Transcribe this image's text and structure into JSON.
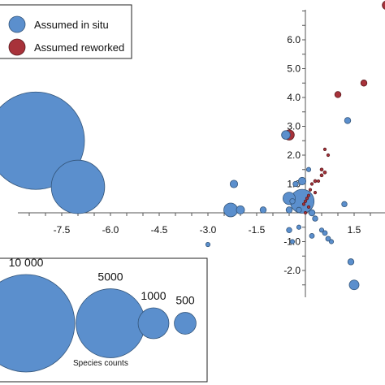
{
  "chart_data": {
    "type": "scatter",
    "title": "",
    "xlabel": "",
    "ylabel": "",
    "xlim": [
      -9.8,
      2.2
    ],
    "ylim": [
      -3.6,
      7.0
    ],
    "x_ticks": [
      -7.5,
      -6.0,
      -4.5,
      -3.0,
      -1.5,
      1.5
    ],
    "x_tick_labels": [
      "-7.5",
      "-6.0",
      "-4.5",
      "-3.0",
      "-1.5",
      "1.5"
    ],
    "y_ticks": [
      6.0,
      5.0,
      4.0,
      3.0,
      2.0,
      1.0,
      -1.0,
      -2.0
    ],
    "y_tick_labels": [
      "6.0",
      "5.0",
      "4.0",
      "3.0",
      "2.0",
      "1.0",
      "-1.0",
      "-2.0"
    ],
    "grid": false,
    "legend_position": "top-left",
    "series": [
      {
        "name": "Assumed in situ",
        "color": "#5b8fcd",
        "points": [
          {
            "x": -8.3,
            "y": 2.5,
            "size": 10000
          },
          {
            "x": -7.0,
            "y": 0.9,
            "size": 3000
          },
          {
            "x": -2.3,
            "y": 0.1,
            "size": 200
          },
          {
            "x": -2.2,
            "y": 1.0,
            "size": 60
          },
          {
            "x": -2.0,
            "y": 0.1,
            "size": 70
          },
          {
            "x": -3.0,
            "y": -1.1,
            "size": 20
          },
          {
            "x": -1.3,
            "y": 0.1,
            "size": 40
          },
          {
            "x": -0.5,
            "y": 0.1,
            "size": 40
          },
          {
            "x": -0.6,
            "y": 2.7,
            "size": 80
          },
          {
            "x": -0.5,
            "y": 0.5,
            "size": 160
          },
          {
            "x": -0.1,
            "y": 0.4,
            "size": 600
          },
          {
            "x": -0.3,
            "y": 1.0,
            "size": 30
          },
          {
            "x": -0.1,
            "y": 1.1,
            "size": 60
          },
          {
            "x": -0.5,
            "y": -0.6,
            "size": 30
          },
          {
            "x": -0.4,
            "y": -1.0,
            "size": 20
          },
          {
            "x": -0.2,
            "y": -0.5,
            "size": 20
          },
          {
            "x": -0.2,
            "y": 0.1,
            "size": 30
          },
          {
            "x": 0.2,
            "y": 0.0,
            "size": 40
          },
          {
            "x": 0.3,
            "y": -0.2,
            "size": 30
          },
          {
            "x": 0.6,
            "y": -0.7,
            "size": 25
          },
          {
            "x": 0.7,
            "y": -0.9,
            "size": 25
          },
          {
            "x": 0.8,
            "y": -1.0,
            "size": 20
          },
          {
            "x": 0.5,
            "y": -0.6,
            "size": 20
          },
          {
            "x": 0.2,
            "y": -0.8,
            "size": 25
          },
          {
            "x": 1.2,
            "y": 0.3,
            "size": 30
          },
          {
            "x": 1.4,
            "y": -1.7,
            "size": 40
          },
          {
            "x": 1.5,
            "y": -2.5,
            "size": 100
          },
          {
            "x": 1.3,
            "y": 3.2,
            "size": 40
          },
          {
            "x": -0.4,
            "y": 0.4,
            "size": 30
          },
          {
            "x": 0.1,
            "y": 1.5,
            "size": 20
          }
        ]
      },
      {
        "name": "Assumed reworked",
        "color": "#a8323a",
        "points": [
          {
            "x": 1.8,
            "y": 4.5,
            "size": 40
          },
          {
            "x": 1.0,
            "y": 4.1,
            "size": 40
          },
          {
            "x": 2.5,
            "y": 7.2,
            "size": 80
          },
          {
            "x": -0.5,
            "y": 2.7,
            "size": 110
          },
          {
            "x": 0.6,
            "y": 2.2,
            "size": 8
          },
          {
            "x": 0.7,
            "y": 2.0,
            "size": 8
          },
          {
            "x": 0.5,
            "y": 1.5,
            "size": 10
          },
          {
            "x": 0.6,
            "y": 1.4,
            "size": 10
          },
          {
            "x": 0.5,
            "y": 1.3,
            "size": 10
          },
          {
            "x": 0.3,
            "y": 1.1,
            "size": 10
          },
          {
            "x": 0.2,
            "y": 1.0,
            "size": 8
          },
          {
            "x": 0.4,
            "y": 1.1,
            "size": 8
          },
          {
            "x": 0.1,
            "y": 0.6,
            "size": 8
          },
          {
            "x": 0.05,
            "y": 0.5,
            "size": 8
          },
          {
            "x": 0.0,
            "y": 0.4,
            "size": 8
          },
          {
            "x": -0.05,
            "y": 0.3,
            "size": 8
          },
          {
            "x": 0.15,
            "y": 0.8,
            "size": 8
          },
          {
            "x": 0.1,
            "y": 0.2,
            "size": 8
          },
          {
            "x": 0.0,
            "y": 0.0,
            "size": 8
          },
          {
            "x": 0.3,
            "y": 0.7,
            "size": 8
          }
        ]
      }
    ],
    "size_legend": {
      "title": "Species counts",
      "entries": [
        {
          "label": "10 000",
          "size": 10000
        },
        {
          "label": "5000",
          "size": 5000
        },
        {
          "label": "1000",
          "size": 1000
        },
        {
          "label": "500",
          "size": 500
        }
      ]
    }
  }
}
